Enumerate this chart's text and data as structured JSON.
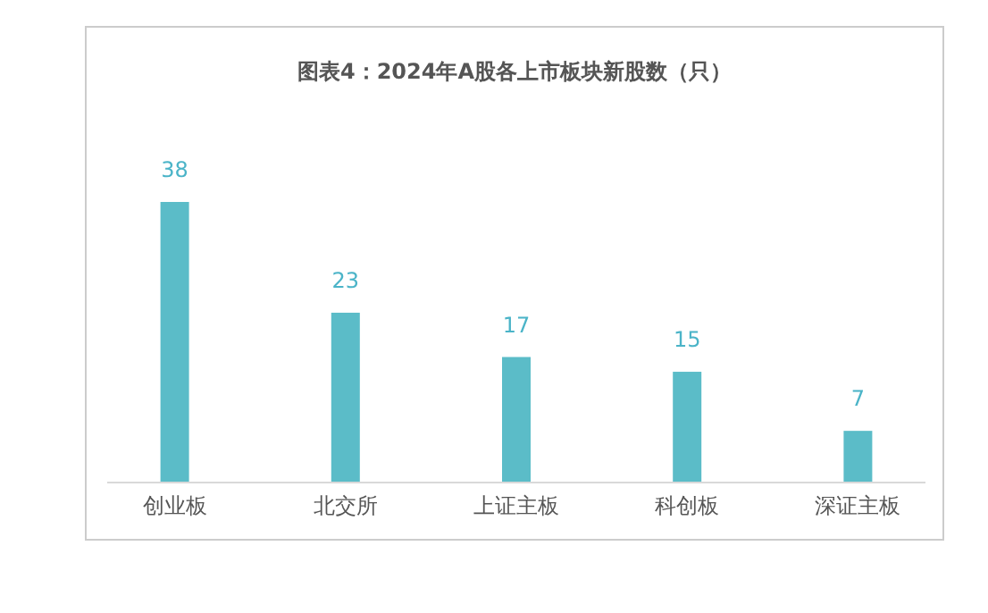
{
  "chart_data": {
    "type": "bar",
    "title": "图表4：2024年A股各上市板块新股数（只）",
    "categories": [
      "创业板",
      "北交所",
      "上证主板",
      "科创板",
      "深证主板"
    ],
    "values": [
      38,
      23,
      17,
      15,
      7
    ],
    "color": "#5bbcc8",
    "data_labels": true
  }
}
